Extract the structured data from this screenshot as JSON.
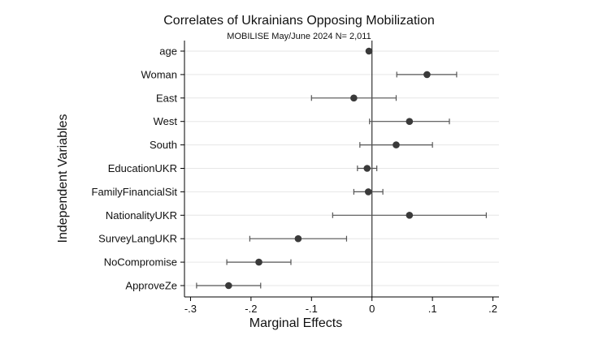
{
  "chart_data": {
    "type": "scatter",
    "title": "Correlates of Ukrainians Opposing Mobilization",
    "subtitle": "MOBILISE May/June 2024 N= 2,011",
    "xlabel": "Marginal Effects",
    "ylabel": "Independent Variables",
    "xlim": [
      -0.31,
      0.21
    ],
    "xticks": [
      -0.3,
      -0.2,
      -0.1,
      0,
      0.1,
      0.2
    ],
    "xtick_labels": [
      "-.3",
      "-.2",
      "-.1",
      "0",
      ".1",
      ".2"
    ],
    "reference_line_x": 0,
    "grid": true,
    "colors": {
      "point": "#3a3a3a",
      "ci": "#555555",
      "grid": "#e6e6e6"
    },
    "variables": [
      {
        "label": "age",
        "estimate": -0.005,
        "ci_low": -0.005,
        "ci_high": -0.005
      },
      {
        "label": "Woman",
        "estimate": 0.091,
        "ci_low": 0.041,
        "ci_high": 0.14
      },
      {
        "label": "East",
        "estimate": -0.03,
        "ci_low": -0.1,
        "ci_high": 0.04
      },
      {
        "label": "West",
        "estimate": 0.062,
        "ci_low": -0.004,
        "ci_high": 0.128
      },
      {
        "label": "South",
        "estimate": 0.04,
        "ci_low": -0.02,
        "ci_high": 0.1
      },
      {
        "label": "EducationUKR",
        "estimate": -0.008,
        "ci_low": -0.024,
        "ci_high": 0.008
      },
      {
        "label": "FamilyFinancialSit",
        "estimate": -0.006,
        "ci_low": -0.03,
        "ci_high": 0.018
      },
      {
        "label": "NationalityUKR",
        "estimate": 0.062,
        "ci_low": -0.065,
        "ci_high": 0.189
      },
      {
        "label": "SurveyLangUKR",
        "estimate": -0.122,
        "ci_low": -0.202,
        "ci_high": -0.042
      },
      {
        "label": "NoCompromise",
        "estimate": -0.187,
        "ci_low": -0.24,
        "ci_high": -0.134
      },
      {
        "label": "ApproveZe",
        "estimate": -0.237,
        "ci_low": -0.29,
        "ci_high": -0.184
      }
    ]
  }
}
